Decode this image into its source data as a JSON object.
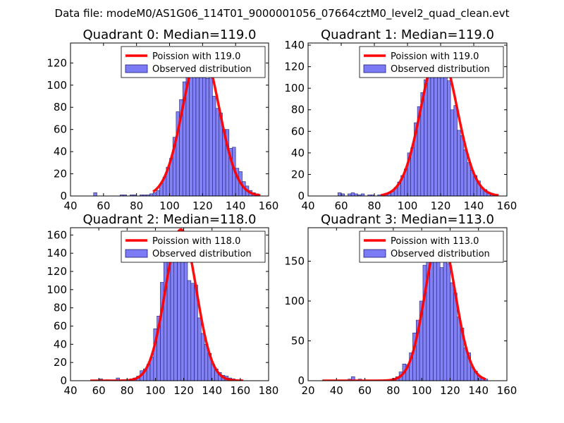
{
  "suptitle": "Data file: modeM0/AS1G06_114T01_9000001056_07664cztM0_level2_quad_clean.evt",
  "colors": {
    "bar_fill": "#7b7bf6",
    "bar_edge": "#1e1e6e",
    "poisson_line": "#ff0000"
  },
  "chart_data": [
    {
      "type": "bar",
      "title": "Quadrant 0: Median=119.0",
      "xlim": [
        40,
        160
      ],
      "ylim": [
        0,
        138
      ],
      "xticks": [
        40,
        60,
        80,
        100,
        120,
        140,
        160
      ],
      "yticks": [
        0,
        20,
        40,
        60,
        80,
        100,
        120
      ],
      "legend": {
        "position": "top-right",
        "line_label": "Poission with 119.0",
        "bar_label": "Observed distribution"
      },
      "bin_width": 2,
      "bins": [
        [
          55,
          3
        ],
        [
          71,
          1
        ],
        [
          73,
          1
        ],
        [
          77,
          1
        ],
        [
          79,
          1
        ],
        [
          83,
          1
        ],
        [
          85,
          1
        ],
        [
          87,
          1
        ],
        [
          89,
          2
        ],
        [
          91,
          3
        ],
        [
          93,
          5
        ],
        [
          95,
          11
        ],
        [
          97,
          17
        ],
        [
          99,
          26
        ],
        [
          101,
          34
        ],
        [
          103,
          53
        ],
        [
          105,
          76
        ],
        [
          107,
          87
        ],
        [
          109,
          103
        ],
        [
          111,
          118
        ],
        [
          113,
          111
        ],
        [
          115,
          114
        ],
        [
          117,
          127
        ],
        [
          119,
          124
        ],
        [
          121,
          129
        ],
        [
          123,
          106
        ],
        [
          125,
          108
        ],
        [
          127,
          90
        ],
        [
          129,
          79
        ],
        [
          131,
          75
        ],
        [
          133,
          60
        ],
        [
          135,
          60
        ],
        [
          137,
          43
        ],
        [
          139,
          44
        ],
        [
          141,
          25
        ],
        [
          143,
          22
        ],
        [
          145,
          13
        ],
        [
          147,
          9
        ],
        [
          149,
          5
        ],
        [
          151,
          3
        ],
        [
          153,
          2
        ]
      ],
      "poisson": {
        "mean": 119.0,
        "peak": 133,
        "sigma": 10.9,
        "range": [
          90,
          155
        ]
      }
    },
    {
      "type": "bar",
      "title": "Quadrant 1: Median=119.0",
      "xlim": [
        40,
        160
      ],
      "ylim": [
        0,
        142
      ],
      "xticks": [
        40,
        60,
        80,
        100,
        120,
        140,
        160
      ],
      "yticks": [
        0,
        20,
        40,
        60,
        80,
        100,
        120,
        140
      ],
      "legend": {
        "position": "top-right",
        "line_label": "Poission with 119.0",
        "bar_label": "Observed distribution"
      },
      "bin_width": 2,
      "bins": [
        [
          59,
          3
        ],
        [
          61,
          2
        ],
        [
          65,
          2
        ],
        [
          67,
          3
        ],
        [
          69,
          2
        ],
        [
          71,
          1
        ],
        [
          73,
          2
        ],
        [
          77,
          1
        ],
        [
          79,
          1
        ],
        [
          83,
          1
        ],
        [
          87,
          2
        ],
        [
          89,
          3
        ],
        [
          91,
          4
        ],
        [
          93,
          8
        ],
        [
          95,
          13
        ],
        [
          97,
          19
        ],
        [
          99,
          25
        ],
        [
          101,
          40
        ],
        [
          103,
          45
        ],
        [
          105,
          68
        ],
        [
          107,
          83
        ],
        [
          109,
          96
        ],
        [
          111,
          108
        ],
        [
          113,
          115
        ],
        [
          115,
          117
        ],
        [
          117,
          122
        ],
        [
          119,
          111
        ],
        [
          121,
          124
        ],
        [
          123,
          113
        ],
        [
          125,
          107
        ],
        [
          127,
          80
        ],
        [
          129,
          84
        ],
        [
          131,
          61
        ],
        [
          133,
          56
        ],
        [
          135,
          43
        ],
        [
          137,
          31
        ],
        [
          139,
          24
        ],
        [
          141,
          19
        ],
        [
          143,
          14
        ],
        [
          145,
          8
        ],
        [
          147,
          6
        ],
        [
          149,
          3
        ],
        [
          151,
          2
        ]
      ],
      "poisson": {
        "mean": 119.0,
        "peak": 135,
        "sigma": 10.9,
        "range": [
          84,
          155
        ]
      }
    },
    {
      "type": "bar",
      "title": "Quadrant 2: Median=118.0",
      "xlim": [
        40,
        180
      ],
      "ylim": [
        0,
        168
      ],
      "xticks": [
        40,
        60,
        80,
        100,
        120,
        140,
        160,
        180
      ],
      "yticks": [
        0,
        20,
        40,
        60,
        80,
        100,
        120,
        140,
        160
      ],
      "legend": {
        "position": "top-right",
        "line_label": "Poission with 118.0",
        "bar_label": "Observed distribution"
      },
      "bin_width": 2.4,
      "bins": [
        [
          61.5,
          2
        ],
        [
          66.3,
          1
        ],
        [
          73.5,
          3
        ],
        [
          80.7,
          1
        ],
        [
          83.1,
          2
        ],
        [
          85.5,
          3
        ],
        [
          87.9,
          5
        ],
        [
          90.3,
          11
        ],
        [
          92.7,
          13
        ],
        [
          95.1,
          18
        ],
        [
          97.5,
          26
        ],
        [
          99.9,
          57
        ],
        [
          102.3,
          71
        ],
        [
          104.7,
          108
        ],
        [
          107.1,
          131
        ],
        [
          109.5,
          147
        ],
        [
          111.9,
          145
        ],
        [
          114.3,
          153
        ],
        [
          116.7,
          148
        ],
        [
          119.1,
          138
        ],
        [
          121.5,
          141
        ],
        [
          123.9,
          110
        ],
        [
          126.3,
          107
        ],
        [
          128.7,
          105
        ],
        [
          131.1,
          69
        ],
        [
          133.5,
          52
        ],
        [
          135.9,
          40
        ],
        [
          138.3,
          30
        ],
        [
          140.7,
          18
        ],
        [
          143.1,
          13
        ],
        [
          145.5,
          9
        ],
        [
          147.9,
          6
        ],
        [
          150.3,
          5
        ],
        [
          152.7,
          3
        ],
        [
          155.1,
          2
        ]
      ],
      "poisson": {
        "mean": 118.0,
        "peak": 166,
        "sigma": 10.9,
        "range": [
          54,
          162
        ]
      }
    },
    {
      "type": "bar",
      "title": "Quadrant 3: Median=113.0",
      "xlim": [
        20,
        160
      ],
      "ylim": [
        0,
        192
      ],
      "xticks": [
        20,
        40,
        60,
        80,
        100,
        120,
        140,
        160
      ],
      "yticks": [
        0,
        50,
        100,
        150
      ],
      "legend": {
        "position": "top-right",
        "line_label": "Poission with 113.0",
        "bar_label": "Observed distribution"
      },
      "bin_width": 2.4,
      "bins": [
        [
          49.3,
          2
        ],
        [
          51.7,
          5
        ],
        [
          56.5,
          2
        ],
        [
          68.5,
          1
        ],
        [
          78.1,
          1
        ],
        [
          80.5,
          3
        ],
        [
          82.9,
          5
        ],
        [
          85.3,
          11
        ],
        [
          87.7,
          21
        ],
        [
          90.1,
          20
        ],
        [
          92.5,
          35
        ],
        [
          94.9,
          60
        ],
        [
          97.3,
          76
        ],
        [
          99.7,
          100
        ],
        [
          102.1,
          145
        ],
        [
          104.5,
          165
        ],
        [
          106.9,
          172
        ],
        [
          109.3,
          163
        ],
        [
          111.7,
          169
        ],
        [
          114.1,
          142
        ],
        [
          116.5,
          162
        ],
        [
          118.9,
          147
        ],
        [
          121.3,
          123
        ],
        [
          123.7,
          110
        ],
        [
          126.1,
          80
        ],
        [
          128.5,
          66
        ],
        [
          130.9,
          41
        ],
        [
          133.3,
          35
        ],
        [
          135.7,
          17
        ],
        [
          138.1,
          12
        ],
        [
          140.5,
          6
        ],
        [
          142.9,
          4
        ],
        [
          145.3,
          2
        ]
      ],
      "poisson": {
        "mean": 113.0,
        "peak": 183,
        "sigma": 10.6,
        "range": [
          30,
          145
        ]
      }
    }
  ]
}
